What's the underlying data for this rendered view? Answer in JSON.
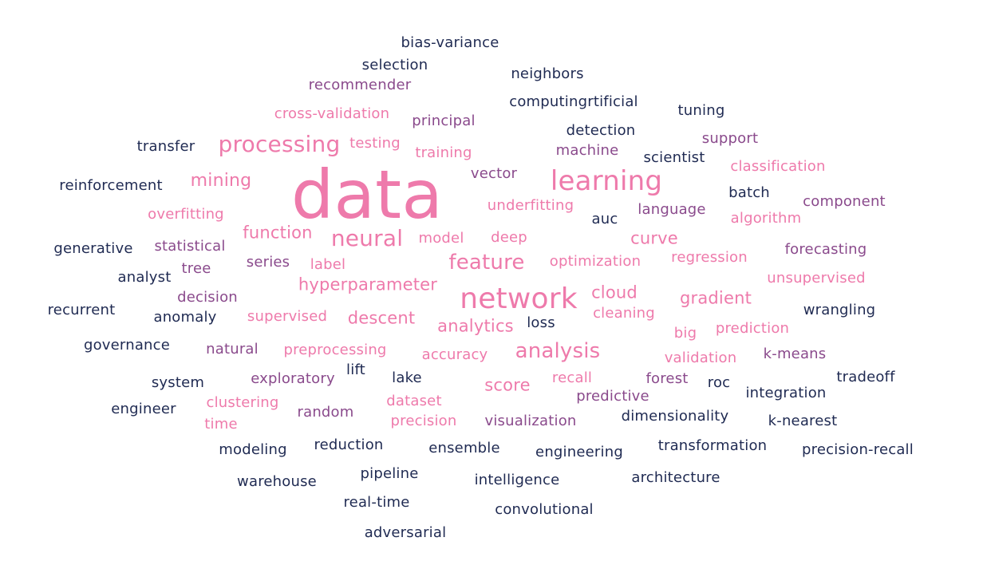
{
  "palette": {
    "navy": "#1f2a52",
    "purple": "#8a4a8c",
    "orchid": "#c35fa5",
    "pink": "#ee7aab"
  },
  "words": [
    {
      "text": "data",
      "color": "#ee7aab"
    },
    {
      "text": "network",
      "color": "#ee7aab"
    },
    {
      "text": "learning",
      "color": "#ee7aab"
    },
    {
      "text": "processing",
      "color": "#ee7aab"
    },
    {
      "text": "neural",
      "color": "#ee7aab"
    },
    {
      "text": "analysis",
      "color": "#ee7aab"
    },
    {
      "text": "feature",
      "color": "#ee7aab"
    },
    {
      "text": "mining",
      "color": "#ee7aab"
    },
    {
      "text": "hyperparameter",
      "color": "#ee7aab"
    },
    {
      "text": "function",
      "color": "#ee7aab"
    },
    {
      "text": "descent",
      "color": "#ee7aab"
    },
    {
      "text": "analytics",
      "color": "#ee7aab"
    },
    {
      "text": "gradient",
      "color": "#ee7aab"
    },
    {
      "text": "cloud",
      "color": "#ee7aab"
    },
    {
      "text": "curve",
      "color": "#ee7aab"
    },
    {
      "text": "score",
      "color": "#ee7aab"
    },
    {
      "text": "bias-variance",
      "color": "#1f2a52"
    },
    {
      "text": "selection",
      "color": "#1f2a52"
    },
    {
      "text": "recommender",
      "color": "#8a4a8c"
    },
    {
      "text": "neighbors",
      "color": "#1f2a52"
    },
    {
      "text": "computingrtificial",
      "color": "#1f2a52"
    },
    {
      "text": "cross-validation",
      "color": "#ee7aab"
    },
    {
      "text": "principal",
      "color": "#8a4a8c"
    },
    {
      "text": "tuning",
      "color": "#1f2a52"
    },
    {
      "text": "detection",
      "color": "#1f2a52"
    },
    {
      "text": "transfer",
      "color": "#1f2a52"
    },
    {
      "text": "testing",
      "color": "#ee7aab"
    },
    {
      "text": "support",
      "color": "#8a4a8c"
    },
    {
      "text": "training",
      "color": "#ee7aab"
    },
    {
      "text": "machine",
      "color": "#8a4a8c"
    },
    {
      "text": "scientist",
      "color": "#1f2a52"
    },
    {
      "text": "classification",
      "color": "#ee7aab"
    },
    {
      "text": "vector",
      "color": "#8a4a8c"
    },
    {
      "text": "reinforcement",
      "color": "#1f2a52"
    },
    {
      "text": "batch",
      "color": "#1f2a52"
    },
    {
      "text": "component",
      "color": "#8a4a8c"
    },
    {
      "text": "underfitting",
      "color": "#ee7aab"
    },
    {
      "text": "language",
      "color": "#8a4a8c"
    },
    {
      "text": "overfitting",
      "color": "#ee7aab"
    },
    {
      "text": "auc",
      "color": "#1f2a52"
    },
    {
      "text": "algorithm",
      "color": "#ee7aab"
    },
    {
      "text": "model",
      "color": "#ee7aab"
    },
    {
      "text": "deep",
      "color": "#ee7aab"
    },
    {
      "text": "statistical",
      "color": "#8a4a8c"
    },
    {
      "text": "generative",
      "color": "#1f2a52"
    },
    {
      "text": "forecasting",
      "color": "#8a4a8c"
    },
    {
      "text": "tree",
      "color": "#8a4a8c"
    },
    {
      "text": "series",
      "color": "#8a4a8c"
    },
    {
      "text": "label",
      "color": "#ee7aab"
    },
    {
      "text": "optimization",
      "color": "#ee7aab"
    },
    {
      "text": "regression",
      "color": "#ee7aab"
    },
    {
      "text": "analyst",
      "color": "#1f2a52"
    },
    {
      "text": "unsupervised",
      "color": "#ee7aab"
    },
    {
      "text": "decision",
      "color": "#8a4a8c"
    },
    {
      "text": "recurrent",
      "color": "#1f2a52"
    },
    {
      "text": "wrangling",
      "color": "#1f2a52"
    },
    {
      "text": "anomaly",
      "color": "#1f2a52"
    },
    {
      "text": "supervised",
      "color": "#ee7aab"
    },
    {
      "text": "cleaning",
      "color": "#ee7aab"
    },
    {
      "text": "loss",
      "color": "#1f2a52"
    },
    {
      "text": "prediction",
      "color": "#ee7aab"
    },
    {
      "text": "big",
      "color": "#ee7aab"
    },
    {
      "text": "governance",
      "color": "#1f2a52"
    },
    {
      "text": "natural",
      "color": "#8a4a8c"
    },
    {
      "text": "preprocessing",
      "color": "#ee7aab"
    },
    {
      "text": "accuracy",
      "color": "#ee7aab"
    },
    {
      "text": "validation",
      "color": "#ee7aab"
    },
    {
      "text": "k-means",
      "color": "#8a4a8c"
    },
    {
      "text": "lift",
      "color": "#1f2a52"
    },
    {
      "text": "system",
      "color": "#1f2a52"
    },
    {
      "text": "exploratory",
      "color": "#8a4a8c"
    },
    {
      "text": "lake",
      "color": "#1f2a52"
    },
    {
      "text": "recall",
      "color": "#ee7aab"
    },
    {
      "text": "forest",
      "color": "#8a4a8c"
    },
    {
      "text": "tradeoff",
      "color": "#1f2a52"
    },
    {
      "text": "roc",
      "color": "#1f2a52"
    },
    {
      "text": "integration",
      "color": "#1f2a52"
    },
    {
      "text": "predictive",
      "color": "#8a4a8c"
    },
    {
      "text": "clustering",
      "color": "#ee7aab"
    },
    {
      "text": "dataset",
      "color": "#ee7aab"
    },
    {
      "text": "engineer",
      "color": "#1f2a52"
    },
    {
      "text": "random",
      "color": "#8a4a8c"
    },
    {
      "text": "dimensionality",
      "color": "#1f2a52"
    },
    {
      "text": "time",
      "color": "#ee7aab"
    },
    {
      "text": "precision",
      "color": "#ee7aab"
    },
    {
      "text": "visualization",
      "color": "#8a4a8c"
    },
    {
      "text": "k-nearest",
      "color": "#1f2a52"
    },
    {
      "text": "modeling",
      "color": "#1f2a52"
    },
    {
      "text": "reduction",
      "color": "#1f2a52"
    },
    {
      "text": "ensemble",
      "color": "#1f2a52"
    },
    {
      "text": "transformation",
      "color": "#1f2a52"
    },
    {
      "text": "engineering",
      "color": "#1f2a52"
    },
    {
      "text": "precision-recall",
      "color": "#1f2a52"
    },
    {
      "text": "pipeline",
      "color": "#1f2a52"
    },
    {
      "text": "warehouse",
      "color": "#1f2a52"
    },
    {
      "text": "intelligence",
      "color": "#1f2a52"
    },
    {
      "text": "architecture",
      "color": "#1f2a52"
    },
    {
      "text": "real-time",
      "color": "#1f2a52"
    },
    {
      "text": "convolutional",
      "color": "#1f2a52"
    },
    {
      "text": "adversarial",
      "color": "#1f2a52"
    }
  ]
}
